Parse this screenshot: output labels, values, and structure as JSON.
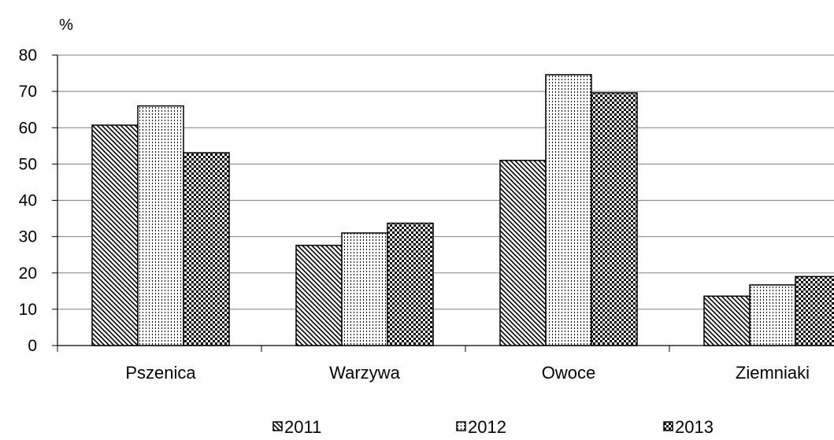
{
  "chart_data": {
    "type": "bar",
    "title": "",
    "ylabel": "%",
    "xlabel": "",
    "ylim": [
      0,
      80
    ],
    "yticks": [
      0,
      10,
      20,
      30,
      40,
      50,
      60,
      70,
      80
    ],
    "grid": true,
    "legend_position": "bottom",
    "categories": [
      "Pszenica",
      "Warzywa",
      "Owoce",
      "Ziemniaki"
    ],
    "series": [
      {
        "name": "2011",
        "pattern": "diagonal-hatch",
        "values": [
          60.7,
          27.6,
          51.0,
          13.6
        ]
      },
      {
        "name": "2012",
        "pattern": "vertical-dotted",
        "values": [
          66.0,
          31.0,
          74.6,
          16.7
        ]
      },
      {
        "name": "2013",
        "pattern": "checkerboard",
        "values": [
          53.1,
          33.7,
          69.6,
          19.0
        ]
      }
    ],
    "colors": {
      "bar_stroke": "#000000",
      "gridline": "#808080",
      "background": "#ffffff"
    }
  }
}
